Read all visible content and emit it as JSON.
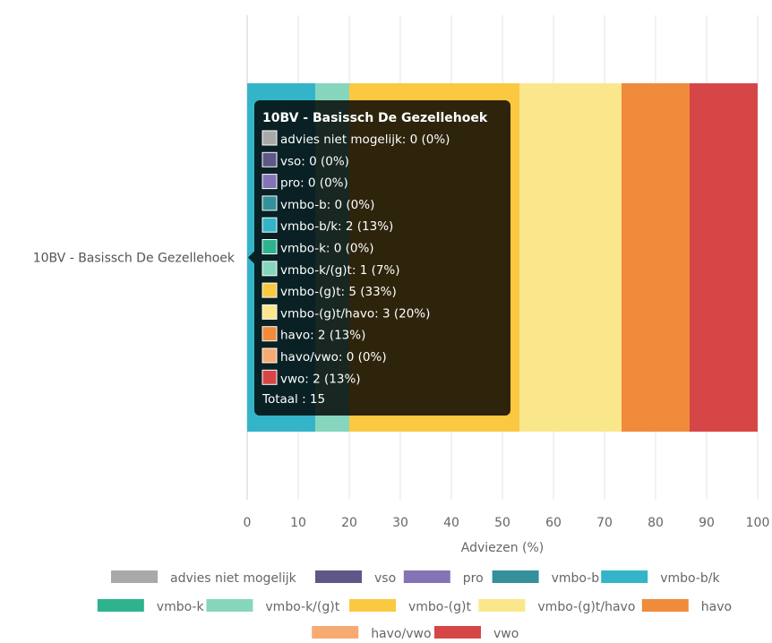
{
  "chart_data": {
    "type": "bar",
    "orientation": "horizontal",
    "stacked": true,
    "categories": [
      "10BV - Basissch De Gezellehoek"
    ],
    "xlabel": "Adviezen (%)",
    "xlim": [
      0,
      100
    ],
    "xticks": [
      0,
      10,
      20,
      30,
      40,
      50,
      60,
      70,
      80,
      90,
      100
    ],
    "grid": true,
    "legend_position": "bottom",
    "series": [
      {
        "name": "advies niet mogelijk",
        "count": 0,
        "values": [
          0
        ],
        "color": "#a9a9a9"
      },
      {
        "name": "vso",
        "count": 0,
        "values": [
          0
        ],
        "color": "#5f5787"
      },
      {
        "name": "pro",
        "count": 0,
        "values": [
          0
        ],
        "color": "#8574b5"
      },
      {
        "name": "vmbo-b",
        "count": 0,
        "values": [
          0
        ],
        "color": "#34919c"
      },
      {
        "name": "vmbo-b/k",
        "count": 2,
        "values": [
          13.33
        ],
        "color": "#34b4c8"
      },
      {
        "name": "vmbo-k",
        "count": 0,
        "values": [
          0
        ],
        "color": "#2db38d"
      },
      {
        "name": "vmbo-k/(g)t",
        "count": 1,
        "values": [
          6.67
        ],
        "color": "#86d6be"
      },
      {
        "name": "vmbo-(g)t",
        "count": 5,
        "values": [
          33.33
        ],
        "color": "#fbc842"
      },
      {
        "name": "vmbo-(g)t/havo",
        "count": 3,
        "values": [
          20
        ],
        "color": "#fbe78b"
      },
      {
        "name": "havo",
        "count": 2,
        "values": [
          13.33
        ],
        "color": "#ef8b3b"
      },
      {
        "name": "havo/vwo",
        "count": 0,
        "values": [
          0
        ],
        "color": "#f7aa72"
      },
      {
        "name": "vwo",
        "count": 2,
        "values": [
          13.33
        ],
        "color": "#d64646"
      }
    ]
  },
  "tooltip": {
    "title": "10BV - Basissch De Gezellehoek",
    "lines": [
      "advies niet mogelijk: 0 (0%)",
      "vso: 0 (0%)",
      "pro: 0 (0%)",
      "vmbo-b: 0 (0%)",
      "vmbo-b/k: 2 (13%)",
      "vmbo-k: 0 (0%)",
      "vmbo-k/(g)t: 1 (7%)",
      "vmbo-(g)t: 5 (33%)",
      "vmbo-(g)t/havo: 3 (20%)",
      "havo: 2 (13%)",
      "havo/vwo: 0 (0%)",
      "vwo: 2 (13%)"
    ],
    "total": "Totaal : 15"
  }
}
